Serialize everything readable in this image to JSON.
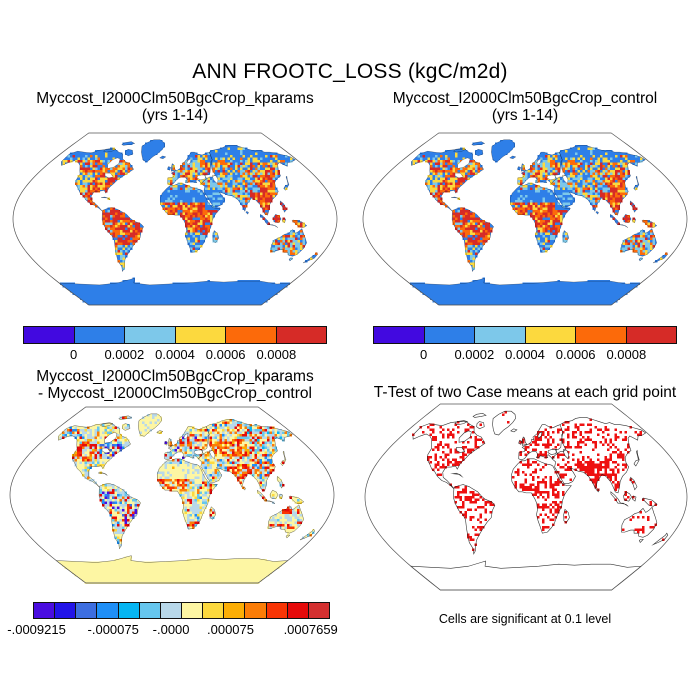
{
  "title": "ANN FROOTC_LOSS (kgC/m2d)",
  "chart_data": [
    {
      "type": "map",
      "panel": "top-left",
      "projection": "robinson",
      "title": "Myccost_I2000Clm50BgcCrop_kparams",
      "subtitle": "(yrs 1-14)",
      "units": "kgC/m2d",
      "colorbar": {
        "tick_labels": [
          "0",
          "0.0002",
          "0.0004",
          "0.0006",
          "0.0008"
        ],
        "colors": [
          "#4209e0",
          "#2e7fe8",
          "#7dc8ea",
          "#fcd93e",
          "#fc6a0a",
          "#d62b27"
        ]
      }
    },
    {
      "type": "map",
      "panel": "top-right",
      "projection": "robinson",
      "title": "Myccost_I2000Clm50BgcCrop_control",
      "subtitle": "(yrs 1-14)",
      "units": "kgC/m2d",
      "colorbar": {
        "tick_labels": [
          "0",
          "0.0002",
          "0.0004",
          "0.0006",
          "0.0008"
        ],
        "colors": [
          "#4209e0",
          "#2e7fe8",
          "#7dc8ea",
          "#fcd93e",
          "#fc6a0a",
          "#d62b27"
        ]
      }
    },
    {
      "type": "map",
      "panel": "bottom-left",
      "projection": "robinson",
      "title": "Myccost_I2000Clm50BgcCrop_kparams",
      "subtitle": "- Myccost_I2000Clm50BgcCrop_control",
      "colorbar": {
        "tick_labels": [
          "-.0009215",
          "-.000075",
          "-.0000",
          ".000075",
          ".0007659"
        ],
        "colors": [
          "#4a0de0",
          "#2214e8",
          "#3d6ee0",
          "#1f8ff7",
          "#05b5f2",
          "#66c6ee",
          "#b8d8ea",
          "#fdf6a3",
          "#fcd93e",
          "#fcae05",
          "#fb7d07",
          "#f83505",
          "#e60a0a",
          "#d43030"
        ]
      }
    },
    {
      "type": "map",
      "panel": "bottom-right",
      "projection": "robinson",
      "title": "T-Test of two Case means at each grid point",
      "caption": "Cells are significant at 0.1 level",
      "significant_color": "#ee1111"
    }
  ]
}
